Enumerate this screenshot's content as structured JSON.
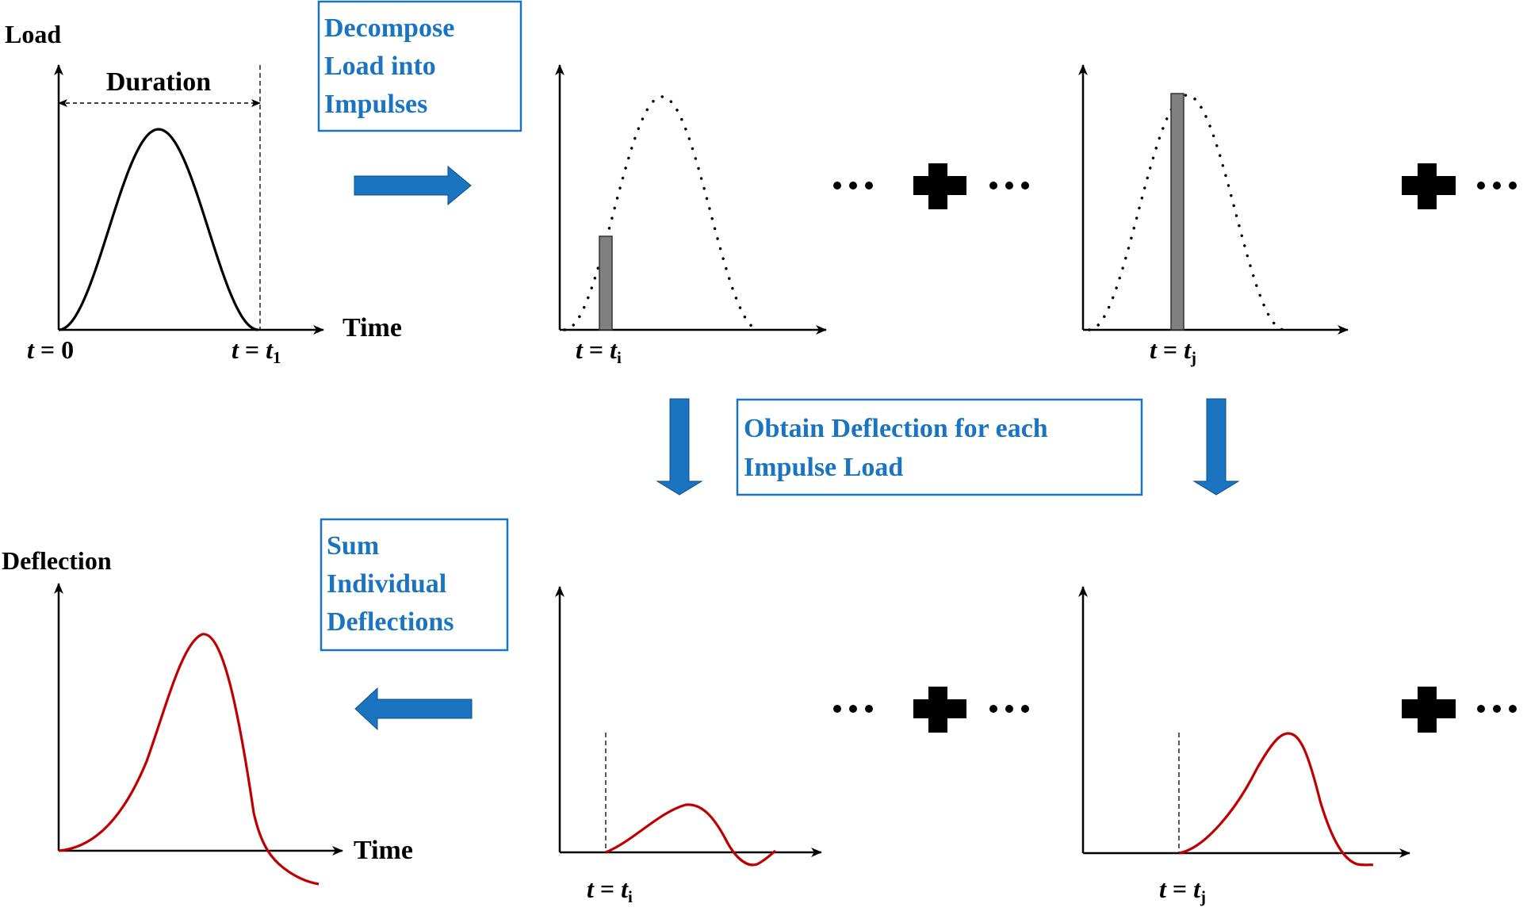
{
  "colors": {
    "accent_blue": "#1a74c0",
    "deflection_red": "#c00000",
    "impulse_gray": "#808080",
    "ink": "#000000"
  },
  "load_plot": {
    "y_label": "Load",
    "duration_label": "Duration",
    "x_label": "Time",
    "t_start_label": {
      "var": "t",
      "eq": " = ",
      "value": "0"
    },
    "t_end_label": {
      "var": "t",
      "eq": " = ",
      "t": "t",
      "sub": "1"
    }
  },
  "decompose_box": {
    "lines": [
      "Decompose",
      "Load into",
      "Impulses"
    ]
  },
  "impulse_plots": [
    {
      "label": {
        "var": "t",
        "eq": " = ",
        "t": "t",
        "sub": "i"
      }
    },
    {
      "label": {
        "var": "t",
        "eq": " = ",
        "t": "t",
        "sub": "j"
      }
    }
  ],
  "obtain_box": {
    "lines": [
      "Obtain Deflection for each",
      "Impulse Load"
    ]
  },
  "sum_box": {
    "lines": [
      "Sum",
      "Individual",
      "Deflections"
    ]
  },
  "deflection_plot": {
    "y_label": "Deflection",
    "x_label": "Time"
  },
  "response_plots": [
    {
      "label": {
        "var": "t",
        "eq": " = ",
        "t": "t",
        "sub": "i"
      }
    },
    {
      "label": {
        "var": "t",
        "eq": " = ",
        "t": "t",
        "sub": "j"
      }
    }
  ],
  "icons": [
    "arrow-right-icon",
    "arrow-down-icon",
    "arrow-left-icon",
    "plus-icon",
    "ellipsis-icon"
  ]
}
